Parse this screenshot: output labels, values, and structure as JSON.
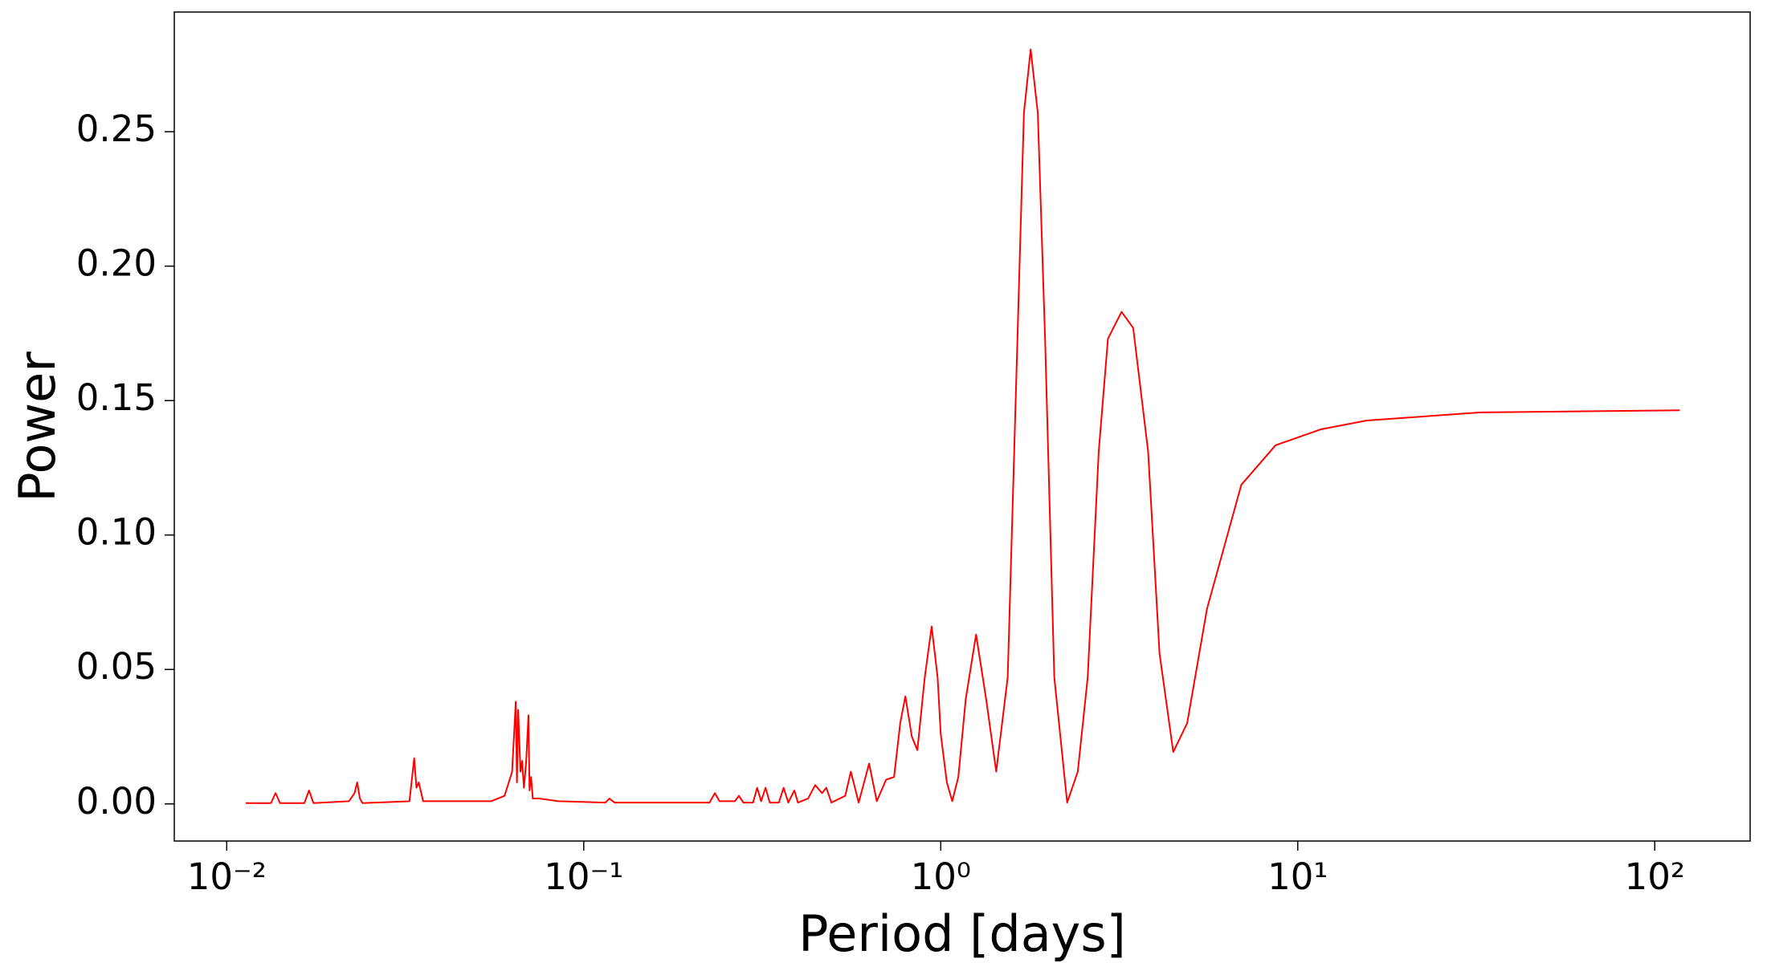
{
  "chart_data": {
    "type": "line",
    "x_label": "Period [days]",
    "y_label": "Power",
    "log_x": true,
    "color": "#ff0000",
    "xlim": [
      0.00713,
      185
    ],
    "ylim": [
      -0.0138,
      0.2945
    ],
    "xticks": [
      {
        "value": 0.01,
        "label": "10⁻²"
      },
      {
        "value": 0.1,
        "label": "10⁻¹"
      },
      {
        "value": 1,
        "label": "10⁰"
      },
      {
        "value": 10,
        "label": "10¹"
      },
      {
        "value": 100,
        "label": "10²"
      }
    ],
    "yticks": [
      {
        "value": 0,
        "label": "0.00"
      },
      0.05,
      {
        "value": 0.1,
        "label": "0.10"
      },
      0.15,
      {
        "value": 0.2,
        "label": "0.20"
      },
      0.25
    ],
    "x": [
      0.0113,
      0.0133,
      0.0137,
      0.0141,
      0.0165,
      0.017,
      0.0175,
      0.022,
      0.0228,
      0.0232,
      0.0236,
      0.024,
      0.0325,
      0.0335,
      0.034,
      0.0345,
      0.0355,
      0.055,
      0.06,
      0.063,
      0.0645,
      0.065,
      0.0655,
      0.0665,
      0.0672,
      0.068,
      0.069,
      0.07,
      0.0705,
      0.0712,
      0.072,
      0.075,
      0.085,
      0.115,
      0.118,
      0.122,
      0.225,
      0.233,
      0.24,
      0.265,
      0.272,
      0.28,
      0.298,
      0.306,
      0.314,
      0.323,
      0.332,
      0.352,
      0.363,
      0.374,
      0.389,
      0.398,
      0.425,
      0.445,
      0.465,
      0.478,
      0.494,
      0.54,
      0.56,
      0.589,
      0.63,
      0.662,
      0.703,
      0.74,
      0.77,
      0.796,
      0.83,
      0.86,
      0.902,
      0.943,
      0.98,
      1.0,
      1.04,
      1.077,
      1.12,
      1.175,
      1.256,
      1.34,
      1.43,
      1.54,
      1.64,
      1.71,
      1.786,
      1.87,
      1.96,
      2.08,
      2.26,
      2.42,
      2.58,
      2.77,
      2.94,
      3.21,
      3.46,
      3.81,
      4.1,
      4.48,
      4.9,
      5.57,
      6.95,
      8.67,
      11.6,
      15.6,
      32.5,
      117.5
    ],
    "series": [
      {
        "color": "#ff0000",
        "values": [
          0.0003,
          0.0003,
          0.004,
          0.0003,
          0.0003,
          0.005,
          0.0003,
          0.001,
          0.004,
          0.008,
          0.002,
          0.0003,
          0.001,
          0.017,
          0.006,
          0.008,
          0.001,
          0.001,
          0.003,
          0.012,
          0.038,
          0.008,
          0.035,
          0.012,
          0.016,
          0.006,
          0.016,
          0.033,
          0.005,
          0.01,
          0.002,
          0.002,
          0.001,
          0.0005,
          0.002,
          0.0005,
          0.0005,
          0.004,
          0.001,
          0.001,
          0.003,
          0.0005,
          0.0005,
          0.006,
          0.001,
          0.006,
          0.0005,
          0.0005,
          0.006,
          0.0005,
          0.005,
          0.0005,
          0.002,
          0.007,
          0.004,
          0.006,
          0.0005,
          0.003,
          0.012,
          0.0005,
          0.015,
          0.001,
          0.009,
          0.01,
          0.03,
          0.04,
          0.025,
          0.02,
          0.047,
          0.066,
          0.047,
          0.026,
          0.008,
          0.001,
          0.01,
          0.039,
          0.063,
          0.039,
          0.012,
          0.047,
          0.173,
          0.257,
          0.2806,
          0.257,
          0.173,
          0.047,
          0.0005,
          0.012,
          0.047,
          0.131,
          0.173,
          0.183,
          0.177,
          0.131,
          0.056,
          0.0193,
          0.03,
          0.0726,
          0.1187,
          0.1334,
          0.1393,
          0.1426,
          0.1456,
          0.1464
        ]
      }
    ]
  }
}
